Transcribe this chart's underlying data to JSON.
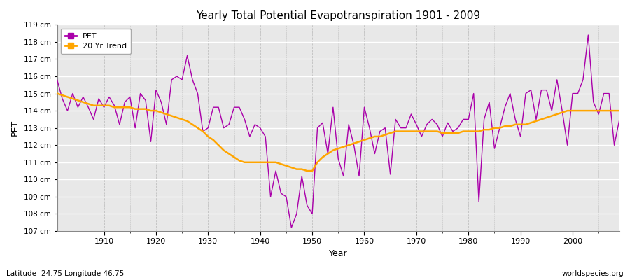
{
  "title": "Yearly Total Potential Evapotranspiration 1901 - 2009",
  "xlabel": "Year",
  "ylabel": "PET",
  "lat_lon_label": "Latitude -24.75 Longitude 46.75",
  "watermark": "worldspecies.org",
  "pet_color": "#aa00aa",
  "trend_color": "#FFA500",
  "fig_bg_color": "#ffffff",
  "plot_bg_color": "#e8e8e8",
  "ylim": [
    107,
    119
  ],
  "xlim_min": 1901,
  "xlim_max": 2009,
  "ytick_labels": [
    "107 cm",
    "108 cm",
    "109 cm",
    "110 cm",
    "111 cm",
    "112 cm",
    "113 cm",
    "114 cm",
    "115 cm",
    "116 cm",
    "117 cm",
    "118 cm",
    "119 cm"
  ],
  "ytick_values": [
    107,
    108,
    109,
    110,
    111,
    112,
    113,
    114,
    115,
    116,
    117,
    118,
    119
  ],
  "xtick_values": [
    1910,
    1920,
    1930,
    1940,
    1950,
    1960,
    1970,
    1980,
    1990,
    2000
  ],
  "years": [
    1901,
    1902,
    1903,
    1904,
    1905,
    1906,
    1907,
    1908,
    1909,
    1910,
    1911,
    1912,
    1913,
    1914,
    1915,
    1916,
    1917,
    1918,
    1919,
    1920,
    1921,
    1922,
    1923,
    1924,
    1925,
    1926,
    1927,
    1928,
    1929,
    1930,
    1931,
    1932,
    1933,
    1934,
    1935,
    1936,
    1937,
    1938,
    1939,
    1940,
    1941,
    1942,
    1943,
    1944,
    1945,
    1946,
    1947,
    1948,
    1949,
    1950,
    1951,
    1952,
    1953,
    1954,
    1955,
    1956,
    1957,
    1958,
    1959,
    1960,
    1961,
    1962,
    1963,
    1964,
    1965,
    1966,
    1967,
    1968,
    1969,
    1970,
    1971,
    1972,
    1973,
    1974,
    1975,
    1976,
    1977,
    1978,
    1979,
    1980,
    1981,
    1982,
    1983,
    1984,
    1985,
    1986,
    1987,
    1988,
    1989,
    1990,
    1991,
    1992,
    1993,
    1994,
    1995,
    1996,
    1997,
    1998,
    1999,
    2000,
    2001,
    2002,
    2003,
    2004,
    2005,
    2006,
    2007,
    2008,
    2009
  ],
  "pet_values": [
    115.8,
    114.7,
    114.0,
    115.0,
    114.2,
    114.8,
    114.2,
    113.5,
    114.7,
    114.2,
    114.8,
    114.3,
    113.2,
    114.5,
    114.8,
    113.0,
    115.0,
    114.6,
    112.2,
    115.2,
    114.5,
    113.2,
    115.8,
    116.0,
    115.8,
    117.2,
    115.8,
    115.0,
    112.8,
    113.0,
    114.2,
    114.2,
    113.0,
    113.2,
    114.2,
    114.2,
    113.5,
    112.5,
    113.2,
    113.0,
    112.5,
    109.0,
    110.5,
    109.2,
    109.0,
    107.2,
    108.0,
    110.2,
    108.5,
    108.0,
    113.0,
    113.3,
    111.5,
    114.2,
    111.2,
    110.2,
    113.2,
    112.0,
    110.2,
    114.2,
    113.0,
    111.5,
    112.8,
    113.0,
    110.3,
    113.5,
    113.0,
    113.0,
    113.8,
    113.2,
    112.5,
    113.2,
    113.5,
    113.2,
    112.5,
    113.3,
    112.8,
    113.0,
    113.5,
    113.5,
    115.0,
    108.7,
    113.5,
    114.5,
    111.8,
    113.0,
    114.2,
    115.0,
    113.5,
    112.5,
    115.0,
    115.2,
    113.5,
    115.2,
    115.2,
    114.0,
    115.8,
    114.0,
    112.0,
    115.0,
    115.0,
    115.8,
    118.4,
    114.5,
    113.8,
    115.0,
    115.0,
    112.0,
    113.5
  ],
  "trend_values": [
    115.0,
    114.9,
    114.8,
    114.7,
    114.6,
    114.5,
    114.4,
    114.3,
    114.3,
    114.3,
    114.3,
    114.2,
    114.2,
    114.2,
    114.2,
    114.1,
    114.1,
    114.1,
    114.0,
    114.0,
    113.9,
    113.8,
    113.7,
    113.6,
    113.5,
    113.4,
    113.2,
    113.0,
    112.8,
    112.5,
    112.3,
    112.0,
    111.7,
    111.5,
    111.3,
    111.1,
    111.0,
    111.0,
    111.0,
    111.0,
    111.0,
    111.0,
    111.0,
    110.9,
    110.8,
    110.7,
    110.6,
    110.6,
    110.5,
    110.5,
    111.0,
    111.3,
    111.5,
    111.7,
    111.8,
    111.9,
    112.0,
    112.1,
    112.2,
    112.3,
    112.4,
    112.5,
    112.5,
    112.6,
    112.7,
    112.8,
    112.8,
    112.8,
    112.8,
    112.8,
    112.8,
    112.8,
    112.8,
    112.8,
    112.7,
    112.7,
    112.7,
    112.7,
    112.8,
    112.8,
    112.8,
    112.8,
    112.9,
    112.9,
    113.0,
    113.0,
    113.1,
    113.1,
    113.2,
    113.2,
    113.2,
    113.3,
    113.4,
    113.5,
    113.6,
    113.7,
    113.8,
    113.9,
    114.0,
    114.0,
    114.0,
    114.0,
    114.0,
    114.0,
    114.0,
    114.0,
    114.0,
    114.0,
    114.0
  ]
}
